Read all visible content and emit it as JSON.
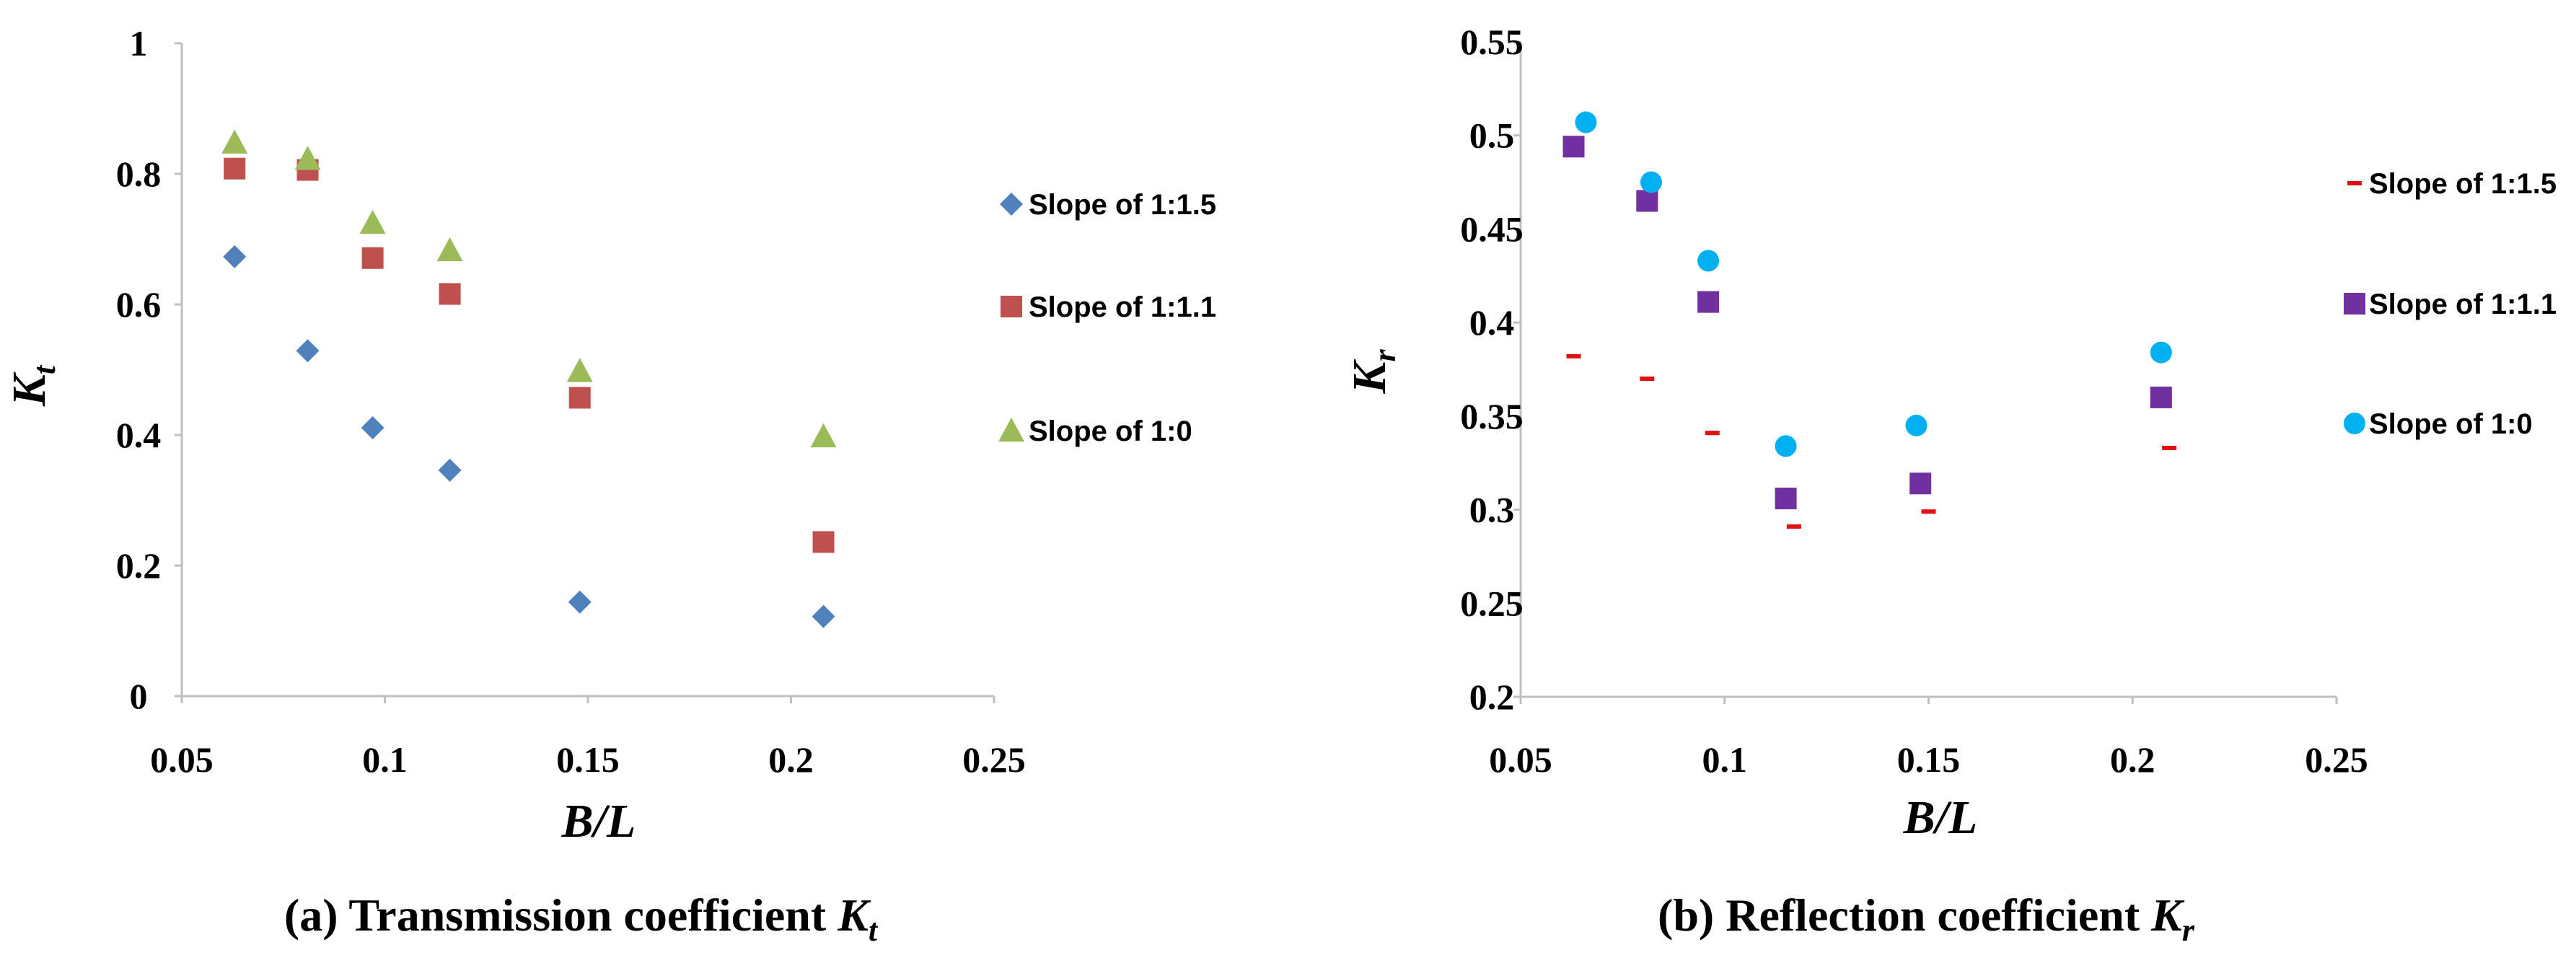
{
  "colors": {
    "diamond": "#4f81bd",
    "square_red": "#c0504d",
    "triangle": "#9bbb59",
    "dash": "#e01010",
    "square_purple": "#7030a0",
    "circle": "#00b0f0"
  },
  "chart_data": [
    {
      "type": "scatter",
      "title": "(a) Transmission coefficient",
      "title_variable": "K",
      "title_subscript": "t",
      "xlabel": "B/L",
      "ylabel": "K",
      "ylabel_subscript": "t",
      "xlim": [
        0.05,
        0.25
      ],
      "ylim": [
        0,
        1
      ],
      "x_ticks": [
        0.05,
        0.1,
        0.15,
        0.2,
        0.25
      ],
      "x_tick_labels": [
        "0.05",
        "0.1",
        "0.15",
        "0.2",
        "0.25"
      ],
      "y_ticks": [
        0,
        0.2,
        0.4,
        0.6,
        0.8,
        1
      ],
      "y_tick_labels": [
        "0",
        "0.2",
        "0.4",
        "0.6",
        "0.8",
        "1"
      ],
      "legend_position": "right",
      "series": [
        {
          "name": "Slope of 1:1.5",
          "marker": "diamond",
          "color_key": "diamond",
          "x": [
            0.063,
            0.081,
            0.097,
            0.116,
            0.148,
            0.208
          ],
          "y": [
            0.673,
            0.529,
            0.411,
            0.346,
            0.144,
            0.122
          ]
        },
        {
          "name": "Slope of 1:1.1",
          "marker": "square",
          "color_key": "square_red",
          "x": [
            0.063,
            0.081,
            0.097,
            0.116,
            0.148,
            0.208
          ],
          "y": [
            0.808,
            0.806,
            0.671,
            0.616,
            0.457,
            0.236
          ]
        },
        {
          "name": "Slope of 1:0",
          "marker": "triangle",
          "color_key": "triangle",
          "x": [
            0.063,
            0.081,
            0.097,
            0.116,
            0.148,
            0.208
          ],
          "y": [
            0.848,
            0.823,
            0.725,
            0.683,
            0.498,
            0.398
          ]
        }
      ]
    },
    {
      "type": "scatter",
      "title": "(b) Reflection coefficient",
      "title_variable": "K",
      "title_subscript": "r",
      "xlabel": "B/L",
      "ylabel": "K",
      "ylabel_subscript": "r",
      "xlim": [
        0.05,
        0.25
      ],
      "ylim": [
        0.2,
        0.55
      ],
      "x_ticks": [
        0.05,
        0.1,
        0.15,
        0.2,
        0.25
      ],
      "x_tick_labels": [
        "0.05",
        "0.1",
        "0.15",
        "0.2",
        "0.25"
      ],
      "y_ticks": [
        0.2,
        0.25,
        0.3,
        0.35,
        0.4,
        0.45,
        0.5,
        0.55
      ],
      "y_tick_labels": [
        "0.2",
        "0.25",
        "0.3",
        "0.35",
        "0.4",
        "0.45",
        "0.5",
        "0.55"
      ],
      "legend_position": "right",
      "series": [
        {
          "name": "Slope of 1:1.5",
          "marker": "dash",
          "color_key": "dash",
          "x": [
            0.063,
            0.081,
            0.097,
            0.117,
            0.15,
            0.209
          ],
          "y": [
            0.382,
            0.37,
            0.341,
            0.291,
            0.299,
            0.333
          ]
        },
        {
          "name": "Slope of 1:1.1",
          "marker": "square",
          "color_key": "square_purple",
          "x": [
            0.063,
            0.081,
            0.096,
            0.115,
            0.148,
            0.207
          ],
          "y": [
            0.494,
            0.465,
            0.411,
            0.306,
            0.314,
            0.36
          ]
        },
        {
          "name": "Slope of 1:0",
          "marker": "circle",
          "color_key": "circle",
          "x": [
            0.066,
            0.082,
            0.096,
            0.115,
            0.147,
            0.207
          ],
          "y": [
            0.507,
            0.475,
            0.433,
            0.334,
            0.345,
            0.384
          ]
        }
      ]
    }
  ]
}
